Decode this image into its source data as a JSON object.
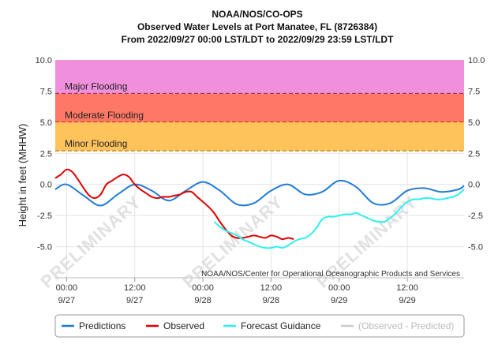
{
  "chart_data": {
    "type": "line",
    "title": "NOAA/NOS/CO-OPS",
    "subtitle": "Observed Water Levels at Port Manatee, FL (8726384)",
    "date_range": "From 2022/09/27 00:00 LST/LDT to 2022/09/29 23:59 LST/LDT",
    "ylabel": "Height in feet (MHHW)",
    "ylim": [
      -7.5,
      10.0
    ],
    "yticks": [
      "10.0",
      "7.5",
      "5.0",
      "2.5",
      "0.0",
      "-2.5",
      "-5.0"
    ],
    "ytick_values": [
      10.0,
      7.5,
      5.0,
      2.5,
      0.0,
      -2.5,
      -5.0
    ],
    "xlim_hours": [
      -2,
      70
    ],
    "xticks": [
      {
        "hour": 0,
        "time": "00:00",
        "date": "9/27"
      },
      {
        "hour": 12,
        "time": "12:00",
        "date": "9/27"
      },
      {
        "hour": 24,
        "time": "00:00",
        "date": "9/28"
      },
      {
        "hour": 36,
        "time": "12:00",
        "date": "9/28"
      },
      {
        "hour": 48,
        "time": "00:00",
        "date": "9/29"
      },
      {
        "hour": 60,
        "time": "12:00",
        "date": "9/29"
      }
    ],
    "flood_bands": [
      {
        "name": "Major Flooding",
        "from": 7.3,
        "to": 10.0,
        "color": "#f090dc",
        "threshold_color": "#5a0a4a"
      },
      {
        "name": "Moderate Flooding",
        "from": 5.0,
        "to": 7.3,
        "color": "#ff7866",
        "threshold_color": "#aa0000"
      },
      {
        "name": "Minor Flooding",
        "from": 2.7,
        "to": 5.0,
        "color": "#ffc35c",
        "threshold_color": "#c98a1a"
      }
    ],
    "grid": true,
    "legend_position": "bottom",
    "series": [
      {
        "name": "Predictions",
        "color": "#1f7bd4",
        "x": [
          -2,
          0,
          3,
          6,
          9,
          12,
          15,
          18,
          21,
          24,
          27,
          30,
          33,
          36,
          39,
          42,
          45,
          48,
          51,
          54,
          57,
          60,
          63,
          66,
          69,
          70
        ],
        "y": [
          -0.4,
          0.0,
          -0.9,
          -1.7,
          -0.8,
          0.0,
          -0.5,
          -1.3,
          -0.5,
          0.2,
          -0.5,
          -1.6,
          -1.5,
          -0.5,
          0.0,
          -0.8,
          -0.6,
          0.3,
          -0.2,
          -1.5,
          -1.5,
          -0.5,
          -0.3,
          -0.6,
          -0.4,
          -0.1
        ]
      },
      {
        "name": "Observed",
        "color": "#e00000",
        "x": [
          -2,
          -1,
          0,
          1,
          2,
          3,
          4,
          5,
          6,
          7,
          8,
          9,
          10,
          11,
          12,
          13,
          14,
          15,
          16,
          17,
          18,
          19,
          20,
          21,
          22,
          23,
          24,
          25,
          26,
          27,
          28,
          29,
          30,
          31,
          32,
          33,
          34,
          35,
          36,
          37,
          38,
          39,
          40
        ],
        "y": [
          0.5,
          0.8,
          1.2,
          1.0,
          0.4,
          -0.3,
          -0.9,
          -1.1,
          -0.8,
          0.0,
          0.3,
          0.6,
          0.8,
          0.6,
          0.0,
          -0.4,
          -0.7,
          -1.0,
          -1.1,
          -1.0,
          -1.0,
          -0.9,
          -0.8,
          -0.6,
          -0.6,
          -1.0,
          -1.4,
          -1.8,
          -2.3,
          -3.0,
          -3.6,
          -4.1,
          -4.3,
          -4.3,
          -4.2,
          -4.1,
          -4.2,
          -4.3,
          -4.1,
          -4.2,
          -4.4,
          -4.3,
          -4.4
        ]
      },
      {
        "name": "Forecast Guidance",
        "color": "#2ef0f0",
        "x": [
          26,
          27,
          28,
          29,
          30,
          31,
          32,
          33,
          34,
          35,
          36,
          37,
          38,
          39,
          40,
          41,
          42,
          43,
          44,
          45,
          46,
          47,
          48,
          49,
          50,
          51,
          52,
          53,
          54,
          55,
          56,
          57,
          58,
          59,
          60,
          61,
          62,
          63,
          64,
          65,
          66,
          67,
          68,
          69,
          70
        ],
        "y": [
          -3.0,
          -3.4,
          -3.7,
          -3.9,
          -4.1,
          -4.4,
          -4.6,
          -4.8,
          -5.0,
          -5.1,
          -5.1,
          -5.0,
          -5.1,
          -4.9,
          -4.6,
          -4.4,
          -4.3,
          -4.0,
          -3.5,
          -2.8,
          -2.6,
          -2.6,
          -2.5,
          -2.4,
          -2.4,
          -2.3,
          -2.5,
          -2.7,
          -2.9,
          -3.0,
          -3.0,
          -2.7,
          -2.3,
          -1.8,
          -1.4,
          -1.2,
          -1.2,
          -1.1,
          -1.1,
          -1.2,
          -1.2,
          -1.1,
          -1.0,
          -0.8,
          -0.4
        ]
      }
    ],
    "watermark": "PRELIMINARY",
    "credit": "NOAA/NOS/Center for Operational Oceanographic Products and Services",
    "legend": [
      {
        "name": "Predictions",
        "color": "#1f7bd4",
        "dim": false
      },
      {
        "name": "Observed",
        "color": "#e00000",
        "dim": false
      },
      {
        "name": "Forecast Guidance",
        "color": "#2ef0f0",
        "dim": false
      },
      {
        "name": "(Observed - Predicted)",
        "color": "#cccccc",
        "dim": true
      }
    ]
  }
}
